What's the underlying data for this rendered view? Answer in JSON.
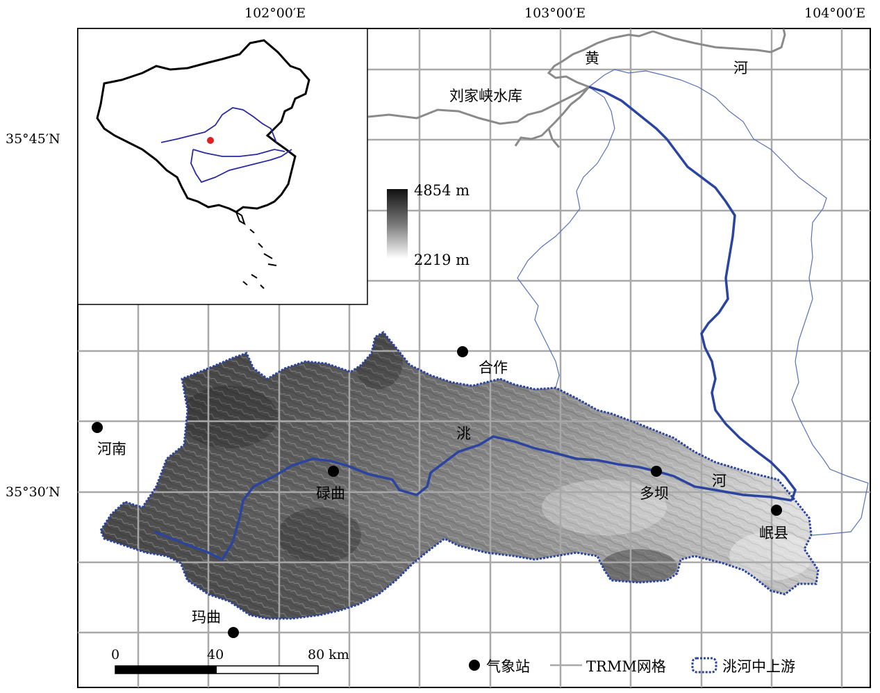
{
  "axes": {
    "lon_labels": [
      "102°00′E",
      "103°00′E",
      "104°00′E"
    ],
    "lat_labels": [
      "35°45′N",
      "35°30′N"
    ]
  },
  "rivers": {
    "huang_he_1": "黄",
    "huang_he_2": "河",
    "reservoir": "刘家峡水库",
    "tao_he_1": "洮",
    "tao_he_2": "河"
  },
  "stations": {
    "hezuo": "合作",
    "henan": "河南",
    "luqu": "碌曲",
    "duoba": "多坝",
    "minxian": "岷县",
    "maqu": "玛曲"
  },
  "elevation_bar": {
    "max": "4854 m",
    "min": "2219 m"
  },
  "scale_bar": {
    "tick_0": "0",
    "tick_40": "40",
    "tick_80": "80 km"
  },
  "legend": {
    "station": "气象站",
    "grid": "TRMM网格",
    "basin": "洮河中上游"
  },
  "colors": {
    "basin_outline": "#2a44a0",
    "grid": "#a8a8a8",
    "yellow_river": "#8a8a8a",
    "inset_highlight": "#e02020"
  }
}
